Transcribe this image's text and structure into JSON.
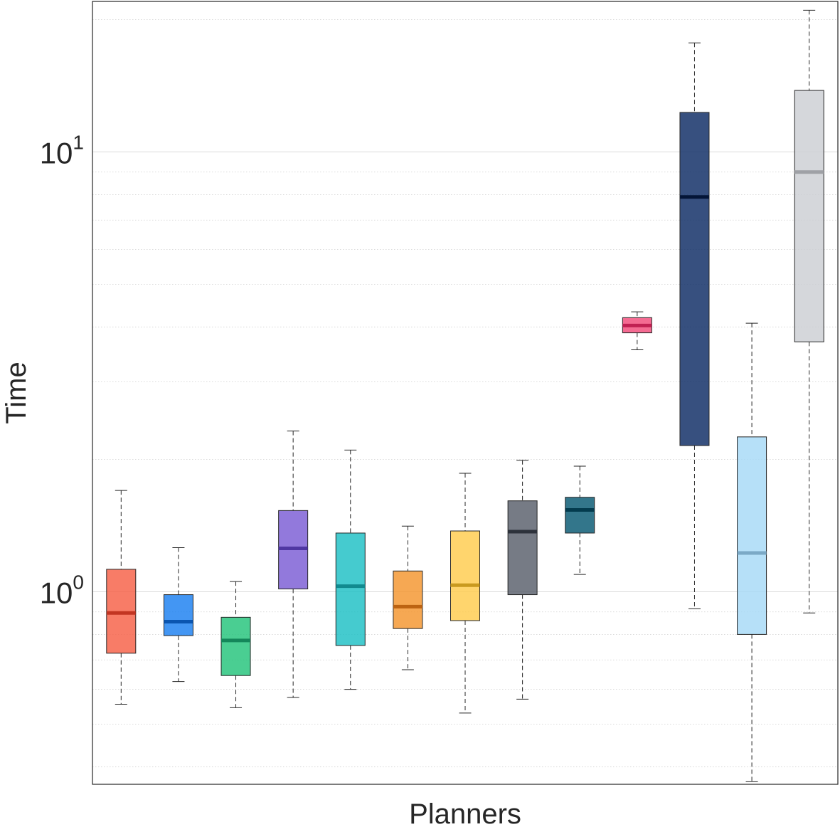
{
  "chart_data": {
    "type": "boxplot",
    "title": "",
    "xlabel": "Planners",
    "ylabel": "Time",
    "yscale": "log",
    "ylim": [
      0.37,
      23
    ],
    "yticks": [
      {
        "value": 1,
        "base": "10",
        "exp": "0"
      },
      {
        "value": 10,
        "base": "10",
        "exp": "1"
      }
    ],
    "grid": true,
    "series": [
      {
        "min": 0.555,
        "q1": 0.725,
        "median": 0.895,
        "q3": 1.125,
        "max": 1.7,
        "fill": "#F65F45",
        "line": "#C23522"
      },
      {
        "min": 0.625,
        "q1": 0.795,
        "median": 0.855,
        "q3": 0.985,
        "max": 1.26,
        "fill": "#1A7FF0",
        "line": "#0A55B0"
      },
      {
        "min": 0.545,
        "q1": 0.645,
        "median": 0.775,
        "q3": 0.875,
        "max": 1.055,
        "fill": "#22C37A",
        "line": "#14875A"
      },
      {
        "min": 0.575,
        "q1": 1.015,
        "median": 1.255,
        "q3": 1.53,
        "max": 2.32,
        "fill": "#7A5CD4",
        "line": "#4F37A2"
      },
      {
        "min": 0.6,
        "q1": 0.755,
        "median": 1.03,
        "q3": 1.36,
        "max": 2.1,
        "fill": "#1CBFC4",
        "line": "#118A8F"
      },
      {
        "min": 0.665,
        "q1": 0.825,
        "median": 0.925,
        "q3": 1.115,
        "max": 1.41,
        "fill": "#F4952D",
        "line": "#BC6312"
      },
      {
        "min": 0.53,
        "q1": 0.86,
        "median": 1.035,
        "q3": 1.375,
        "max": 1.86,
        "fill": "#FFCC4D",
        "line": "#C99A1F"
      },
      {
        "min": 0.57,
        "q1": 0.985,
        "median": 1.37,
        "q3": 1.61,
        "max": 1.99,
        "fill": "#585E6A",
        "line": "#2D323B"
      },
      {
        "min": 1.095,
        "q1": 1.36,
        "median": 1.535,
        "q3": 1.64,
        "max": 1.93,
        "fill": "#065872",
        "line": "#033B4E"
      },
      {
        "min": 3.55,
        "q1": 3.88,
        "median": 4.03,
        "q3": 4.2,
        "max": 4.33,
        "fill": "#F24A7A",
        "line": "#C02052"
      },
      {
        "min": 0.915,
        "q1": 2.15,
        "median": 7.9,
        "q3": 12.3,
        "max": 17.7,
        "fill": "#0B2A63",
        "line": "#041537"
      },
      {
        "min": 0.37,
        "q1": 0.8,
        "median": 1.225,
        "q3": 2.25,
        "max": 4.08,
        "fill": "#A6D9F6",
        "line": "#7BA9C6"
      },
      {
        "min": 0.895,
        "q1": 3.7,
        "median": 9.0,
        "q3": 13.8,
        "max": 21.0,
        "fill": "#CCCED3",
        "line": "#9FA1A6"
      }
    ]
  }
}
